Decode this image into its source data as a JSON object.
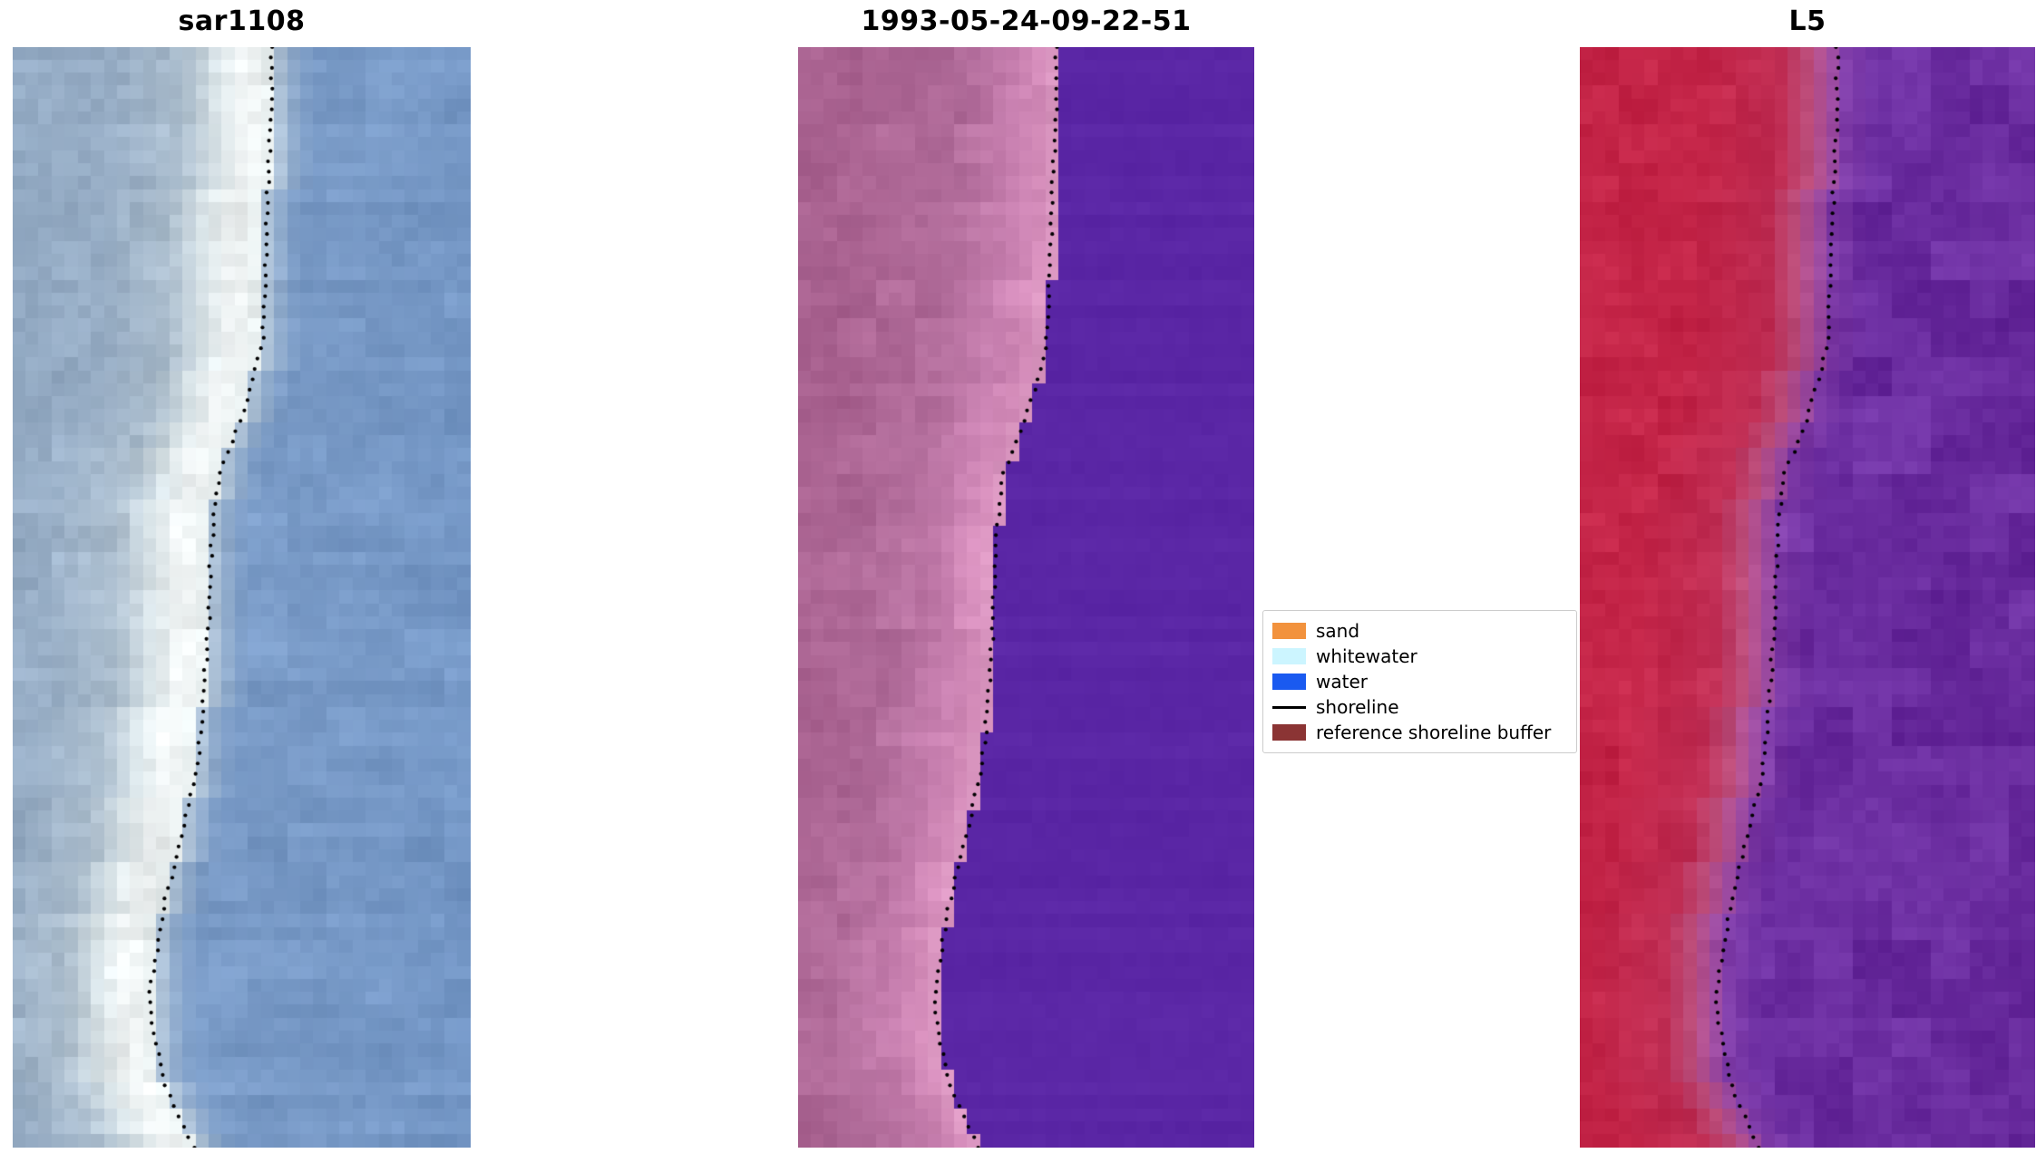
{
  "figure": {
    "background": "#ffffff"
  },
  "chart_data": {
    "type": "image",
    "figure_kind": "three-panel satellite shoreline detection comparison",
    "panels": [
      {
        "title": "sar1108",
        "kind": "sar-rgb-image",
        "grid": [
          35,
          85
        ],
        "seed": 11,
        "stops": [
          [
            -1.0,
            "#8fa9c6"
          ],
          [
            -0.35,
            "#9ab0c8"
          ],
          [
            -0.2,
            "#aec0d0"
          ],
          [
            -0.12,
            "#dde7ea"
          ],
          [
            -0.06,
            "#f4f7f7"
          ],
          [
            -0.01,
            "#e8efef"
          ],
          [
            0.02,
            "#9cb4cf"
          ],
          [
            0.08,
            "#7b9cc8"
          ],
          [
            1.0,
            "#6e92c3"
          ]
        ],
        "jitter_land": 14,
        "patch_land": 16,
        "jitter_water": 9,
        "patch_water": 12,
        "row_noise": 10,
        "boundary_offset": 0.0
      },
      {
        "title": "1993-05-24-09-22-51",
        "kind": "classified-image",
        "grid": [
          35,
          85
        ],
        "seed": 29,
        "stops": [
          [
            -1.0,
            "#a5608e"
          ],
          [
            -0.45,
            "#aa6391"
          ],
          [
            -0.22,
            "#b26d9b"
          ],
          [
            -0.1,
            "#c981b1"
          ],
          [
            -0.03,
            "#d890bd"
          ],
          [
            -0.005,
            "#dc9ac3"
          ],
          [
            0.005,
            "#5a26a5"
          ],
          [
            1.0,
            "#5a26a5"
          ]
        ],
        "jitter_land": 10,
        "patch_land": 14,
        "jitter_water": 3,
        "patch_water": 2,
        "row_noise": 6,
        "boundary_offset": 0.005
      },
      {
        "title": "L5",
        "kind": "false-color-image",
        "grid": [
          35,
          85
        ],
        "seed": 47,
        "stops": [
          [
            -1.0,
            "#c01f41"
          ],
          [
            -0.3,
            "#c32447"
          ],
          [
            -0.13,
            "#c02d53"
          ],
          [
            -0.07,
            "#bb4a77"
          ],
          [
            -0.025,
            "#a74f9c"
          ],
          [
            0.01,
            "#7d3aa6"
          ],
          [
            0.08,
            "#6b2da0"
          ],
          [
            1.0,
            "#682b9d"
          ]
        ],
        "jitter_land": 9,
        "patch_land": 12,
        "jitter_water": 10,
        "patch_water": 22,
        "row_noise": 5,
        "boundary_offset": 0.0
      }
    ],
    "shoreline": {
      "style": "dotted",
      "color": "#000000",
      "dot_radius": 2.1,
      "dot_spacing_px": 11.5,
      "y_rel": [
        0,
        0.06,
        0.12,
        0.2,
        0.27,
        0.3,
        0.33,
        0.36,
        0.385,
        0.42,
        0.47,
        0.52,
        0.57,
        0.62,
        0.66,
        0.7,
        0.74,
        0.78,
        0.82,
        0.855,
        0.88,
        0.91,
        0.94,
        0.97,
        1.0
      ],
      "x_rel": [
        0.565,
        0.565,
        0.558,
        0.553,
        0.545,
        0.525,
        0.505,
        0.478,
        0.452,
        0.44,
        0.432,
        0.428,
        0.42,
        0.412,
        0.4,
        0.378,
        0.355,
        0.33,
        0.315,
        0.3,
        0.302,
        0.315,
        0.33,
        0.36,
        0.395
      ]
    },
    "legend": {
      "items": [
        {
          "label": "sand",
          "kind": "patch",
          "color": "#f2923d"
        },
        {
          "label": "whitewater",
          "kind": "patch",
          "color": "#ccf5ff"
        },
        {
          "label": "water",
          "kind": "patch",
          "color": "#1a5af0"
        },
        {
          "label": "shoreline",
          "kind": "line",
          "color": "#000000"
        },
        {
          "label": "reference shoreline buffer",
          "kind": "patch",
          "color": "#8b3434"
        }
      ]
    }
  }
}
